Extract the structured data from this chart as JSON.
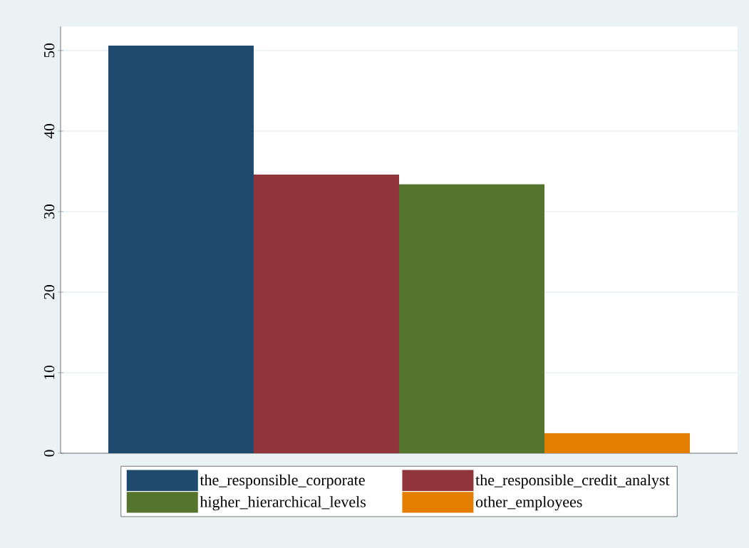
{
  "chart_data": {
    "type": "bar",
    "categories": [
      null
    ],
    "series": [
      {
        "name": "the_responsible_corporate",
        "color": "#1f4a6e",
        "values": [
          50.6
        ]
      },
      {
        "name": "the_responsible_credit_analyst",
        "color": "#90353b",
        "values": [
          34.6
        ]
      },
      {
        "name": "higher_hierarchical_levels",
        "color": "#55752f",
        "values": [
          33.4
        ]
      },
      {
        "name": "other_employees",
        "color": "#e37e00",
        "values": [
          2.5
        ]
      }
    ],
    "ylim": [
      0,
      53
    ],
    "yticks": [
      0,
      10,
      20,
      30,
      40,
      50
    ],
    "grid": "y",
    "legend": "bottom"
  }
}
